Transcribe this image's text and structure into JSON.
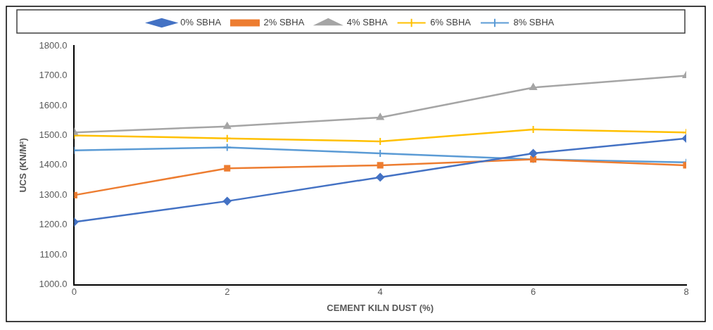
{
  "chart_data": {
    "type": "line",
    "xlabel": "CEMENT KILN DUST (%)",
    "ylabel": "UCS (KN/M²)",
    "x": [
      0,
      2,
      4,
      6,
      8
    ],
    "xlim": [
      0,
      8
    ],
    "xticks": [
      0,
      2,
      4,
      6,
      8
    ],
    "ylim": [
      1000,
      1800
    ],
    "yticks": [
      {
        "value": 1000,
        "label": "1000.0"
      },
      {
        "value": 1100,
        "label": "1100.0"
      },
      {
        "value": 1200,
        "label": "1200.0"
      },
      {
        "value": 1300,
        "label": "1300.0"
      },
      {
        "value": 1400,
        "label": "1400.0"
      },
      {
        "value": 1500,
        "label": "1500.0"
      },
      {
        "value": 1600,
        "label": "1600.0"
      },
      {
        "value": 1700,
        "label": "1700.0"
      },
      {
        "value": 1800,
        "label": "1800.0"
      }
    ],
    "grid": false,
    "legend": "top",
    "line_style": "solid",
    "series": [
      {
        "name": "0% SBHA",
        "color": "#4472c4",
        "marker": "diamond",
        "values": [
          1210,
          1280,
          1360,
          1440,
          1490
        ]
      },
      {
        "name": "2% SBHA",
        "color": "#ed7d31",
        "marker": "square",
        "values": [
          1300,
          1390,
          1400,
          1420,
          1400
        ]
      },
      {
        "name": "4% SBHA",
        "color": "#a5a5a5",
        "marker": "triangle",
        "values": [
          1510,
          1530,
          1560,
          1660,
          1700
        ]
      },
      {
        "name": "6% SBHA",
        "color": "#ffc000",
        "marker": "cross",
        "values": [
          1500,
          1490,
          1480,
          1520,
          1510
        ]
      },
      {
        "name": "8% SBHA",
        "color": "#5b9bd5",
        "marker": "cross",
        "values": [
          1450,
          1460,
          1440,
          1420,
          1410
        ]
      }
    ]
  }
}
